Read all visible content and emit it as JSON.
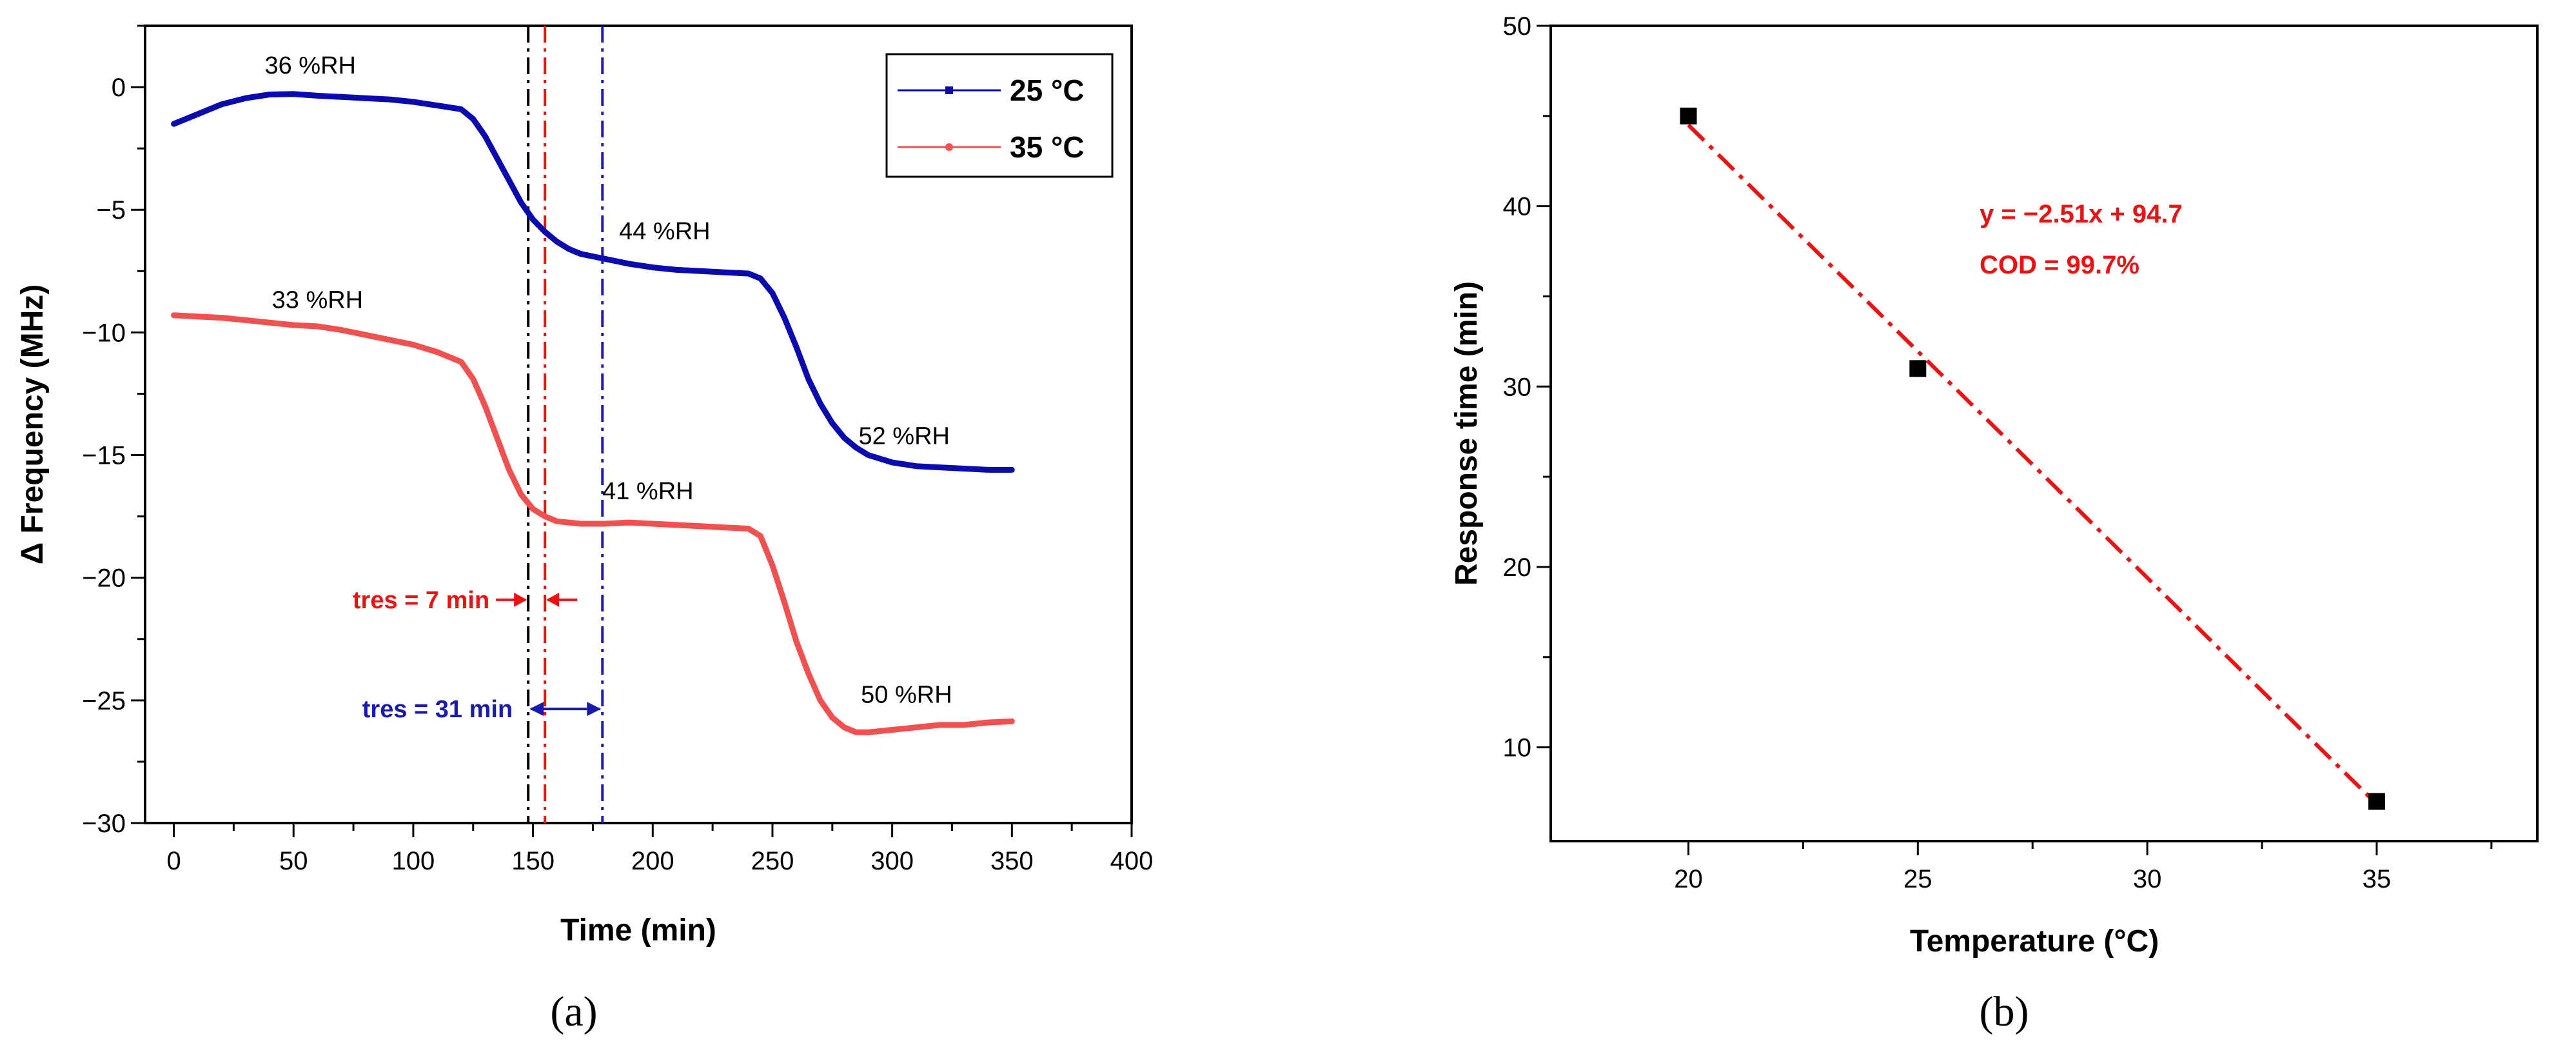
{
  "chart_data": [
    {
      "panel": "(a)",
      "type": "line",
      "title": "",
      "xlabel": "Time (min)",
      "ylabel": "Δ Frequency (MHz)",
      "xlim": [
        -12,
        400
      ],
      "ylim": [
        -30,
        2.5
      ],
      "xticks": [
        0,
        50,
        100,
        150,
        200,
        250,
        300,
        350,
        400
      ],
      "yticks": [
        0,
        -5,
        -10,
        -15,
        -20,
        -25,
        -30
      ],
      "xtick_labels": [
        "0",
        "50",
        "100",
        "150",
        "200",
        "250",
        "300",
        "350",
        "400"
      ],
      "ytick_labels": [
        "0",
        "−5",
        "−10",
        "−15",
        "−20",
        "−25",
        "−30"
      ],
      "legend": {
        "placement": "top-right"
      },
      "series": [
        {
          "name": "25 °C",
          "color": "#0a0ab0",
          "x": [
            0,
            10,
            20,
            30,
            40,
            50,
            60,
            70,
            80,
            90,
            100,
            110,
            120,
            125,
            130,
            135,
            140,
            145,
            150,
            155,
            160,
            165,
            170,
            175,
            180,
            190,
            200,
            210,
            220,
            230,
            240,
            245,
            250,
            255,
            260,
            265,
            270,
            275,
            280,
            285,
            290,
            300,
            310,
            320,
            330,
            340,
            350
          ],
          "y": [
            -1.5,
            -1.1,
            -0.7,
            -0.45,
            -0.3,
            -0.28,
            -0.35,
            -0.4,
            -0.45,
            -0.5,
            -0.6,
            -0.75,
            -0.9,
            -1.3,
            -2.0,
            -2.9,
            -3.8,
            -4.7,
            -5.4,
            -5.9,
            -6.3,
            -6.6,
            -6.8,
            -6.9,
            -7.0,
            -7.2,
            -7.35,
            -7.45,
            -7.5,
            -7.55,
            -7.6,
            -7.8,
            -8.4,
            -9.4,
            -10.6,
            -11.9,
            -12.9,
            -13.7,
            -14.3,
            -14.7,
            -15.0,
            -15.3,
            -15.45,
            -15.5,
            -15.55,
            -15.6,
            -15.6
          ]
        },
        {
          "name": "35 °C",
          "color": "#f05050",
          "x": [
            0,
            10,
            20,
            30,
            40,
            50,
            60,
            70,
            80,
            90,
            100,
            110,
            115,
            120,
            125,
            130,
            135,
            140,
            145,
            150,
            155,
            160,
            165,
            170,
            180,
            190,
            200,
            210,
            220,
            230,
            240,
            245,
            250,
            255,
            260,
            265,
            270,
            275,
            280,
            285,
            290,
            300,
            310,
            320,
            330,
            340,
            350
          ],
          "y": [
            -9.3,
            -9.35,
            -9.4,
            -9.5,
            -9.6,
            -9.7,
            -9.75,
            -9.9,
            -10.1,
            -10.3,
            -10.5,
            -10.8,
            -11.0,
            -11.2,
            -11.9,
            -13.0,
            -14.3,
            -15.6,
            -16.6,
            -17.2,
            -17.5,
            -17.7,
            -17.75,
            -17.8,
            -17.8,
            -17.75,
            -17.8,
            -17.85,
            -17.9,
            -17.95,
            -18.0,
            -18.3,
            -19.5,
            -21.0,
            -22.6,
            -23.9,
            -25.0,
            -25.7,
            -26.1,
            -26.3,
            -26.3,
            -26.2,
            -26.1,
            -26.0,
            -26.0,
            -25.9,
            -25.85
          ]
        }
      ],
      "vlines": [
        {
          "x": 148,
          "color": "#000000",
          "style": "dashdot"
        },
        {
          "x": 155,
          "color": "#ee1111",
          "style": "dashdot"
        },
        {
          "x": 179,
          "color": "#1a1ab0",
          "style": "dashdot"
        }
      ],
      "annotations": [
        {
          "text": "36 %RH",
          "x": 57,
          "y": 0.55
        },
        {
          "text": "44 %RH",
          "x": 205,
          "y": -6.2
        },
        {
          "text": "52 %RH",
          "x": 305,
          "y": -14.55
        },
        {
          "text": "33 %RH",
          "x": 60,
          "y": -9.0
        },
        {
          "text": "41 %RH",
          "x": 198,
          "y": -16.8
        },
        {
          "text": "50 %RH",
          "x": 306,
          "y": -25.1
        }
      ],
      "tres": [
        {
          "text": "tres = 7 min",
          "color": "#ee1111",
          "x1": 148,
          "x2": 155,
          "y": -20.9
        },
        {
          "text": "tres = 31 min",
          "color": "#1a1ab0",
          "x1": 148,
          "x2": 179,
          "y": -25.35
        }
      ]
    },
    {
      "panel": "(b)",
      "type": "scatter",
      "title": "",
      "xlabel": "Temperature (°C)",
      "ylabel": "Response time (min)",
      "xlim": [
        17,
        38.5
      ],
      "ylim": [
        4.8,
        50
      ],
      "xticks": [
        20,
        25,
        30,
        35
      ],
      "yticks": [
        10,
        20,
        30,
        40,
        50
      ],
      "xtick_labels": [
        "20",
        "25",
        "30",
        "35"
      ],
      "ytick_labels": [
        "10",
        "20",
        "30",
        "40",
        "50"
      ],
      "points": {
        "x": [
          20,
          25,
          35
        ],
        "y": [
          45,
          31,
          7
        ],
        "color": "#000000"
      },
      "fit": {
        "slope": -2.51,
        "intercept": 94.7,
        "x_range": [
          20,
          35
        ],
        "color": "#ee1111",
        "style": "dashdot"
      },
      "fit_text": {
        "equation": "y = −2.51x + 94.7",
        "cod": "COD = 99.7%"
      }
    }
  ]
}
